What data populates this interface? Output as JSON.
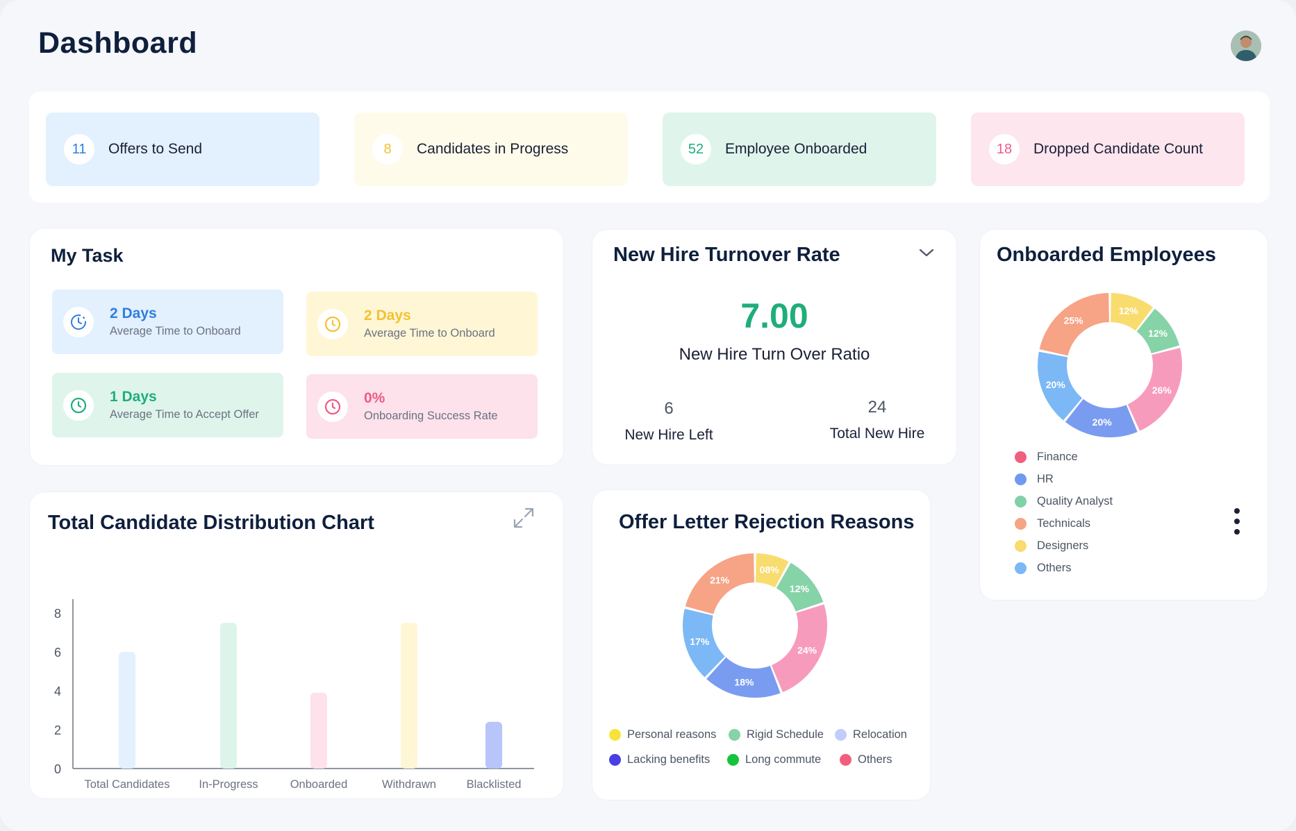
{
  "header": {
    "title": "Dashboard"
  },
  "stats": [
    {
      "value": "11",
      "label": "Offers to Send",
      "bg": "#e3f0fd",
      "color": "#2f7de1"
    },
    {
      "value": "8",
      "label": "Candidates in Progress",
      "bg": "#fffbea",
      "color": "#f2c230"
    },
    {
      "value": "52",
      "label": "Employee Onboarded",
      "bg": "#dff5ec",
      "color": "#1fae7a"
    },
    {
      "value": "18",
      "label": "Dropped Candidate Count",
      "bg": "#fde6ee",
      "color": "#ef5a86"
    }
  ],
  "my_task": {
    "title": "My Task",
    "items": [
      {
        "value": "2 Days",
        "label": "Average Time to Onboard",
        "bg": "#e3f0fd",
        "color": "#2f7de1",
        "icon": "timer-icon"
      },
      {
        "value": "2 Days",
        "label": "Average Time to Onboard",
        "bg": "#fff6d6",
        "color": "#f2c230",
        "icon": "clock-icon"
      },
      {
        "value": "1 Days",
        "label": "Average Time to Accept Offer",
        "bg": "#dff5ec",
        "color": "#1fae7a",
        "icon": "clock-icon"
      },
      {
        "value": "0%",
        "label": "Onboarding Success Rate",
        "bg": "#fde1eb",
        "color": "#ef5a86",
        "icon": "clock-icon"
      }
    ]
  },
  "turnover": {
    "title": "New Hire Turnover Rate",
    "ratio_value": "7.00",
    "ratio_label": "New Hire Turn Over Ratio",
    "left_value": "6",
    "left_label": "New Hire Left",
    "total_value": "24",
    "total_label": "Total New Hire"
  },
  "onboarded": {
    "title": "Onboarded Employees",
    "chart_data": {
      "type": "pie",
      "slices": [
        {
          "name": "Designers",
          "value": 12,
          "label": "12%",
          "color": "#f8dc6e"
        },
        {
          "name": "Quality Analyst",
          "value": 12,
          "label": "12%",
          "color": "#86d3a8"
        },
        {
          "name": "Finance",
          "value": 26,
          "label": "26%",
          "color": "#f79bbd"
        },
        {
          "name": "HR",
          "value": 20,
          "label": "20%",
          "color": "#7a9cf0"
        },
        {
          "name": "Others",
          "value": 20,
          "label": "20%",
          "color": "#7bb8f5"
        },
        {
          "name": "Technicals",
          "value": 25,
          "label": "25%",
          "color": "#f7a385"
        }
      ]
    },
    "legend": [
      {
        "label": "Finance",
        "color": "#f0607c"
      },
      {
        "label": "HR",
        "color": "#6f9af0"
      },
      {
        "label": "Quality Analyst",
        "color": "#7fd1a6"
      },
      {
        "label": "Technicals",
        "color": "#f7a385"
      },
      {
        "label": "Designers",
        "color": "#f8dc6e"
      },
      {
        "label": "Others",
        "color": "#7bb8f5"
      }
    ]
  },
  "distribution": {
    "title": "Total Candidate Distribution Chart",
    "chart_data": {
      "type": "bar",
      "categories": [
        "Total Candidates",
        "In-Progress",
        "Onboarded",
        "Withdrawn",
        "Blacklisted"
      ],
      "values": [
        6,
        7.5,
        3.9,
        7.5,
        2.4
      ],
      "colors": [
        "#e3f0fd",
        "#ddf4ea",
        "#fde1eb",
        "#fff6d6",
        "#b7c5fb"
      ],
      "y_ticks": [
        "0",
        "2",
        "4",
        "6",
        "8"
      ],
      "ylim": [
        0,
        8
      ]
    }
  },
  "rejection": {
    "title": "Offer Letter Rejection Reasons",
    "chart_data": {
      "type": "pie",
      "slices": [
        {
          "value": 8,
          "label": "08%",
          "color": "#f8dc6e"
        },
        {
          "value": 12,
          "label": "12%",
          "color": "#86d3a8"
        },
        {
          "value": 24,
          "label": "24%",
          "color": "#f79bbd"
        },
        {
          "value": 18,
          "label": "18%",
          "color": "#7a9cf0"
        },
        {
          "value": 17,
          "label": "17%",
          "color": "#7bb8f5"
        },
        {
          "value": 21,
          "label": "21%",
          "color": "#f7a385"
        }
      ]
    },
    "legend": [
      {
        "label": "Personal reasons",
        "color": "#f8e33a"
      },
      {
        "label": "Rigid Schedule",
        "color": "#86d3a8"
      },
      {
        "label": "Relocation",
        "color": "#c3cdfb"
      },
      {
        "label": "Lacking benefits",
        "color": "#4a3fe0"
      },
      {
        "label": "Long commute",
        "color": "#14c43c"
      },
      {
        "label": "Others",
        "color": "#f0607c"
      }
    ]
  }
}
